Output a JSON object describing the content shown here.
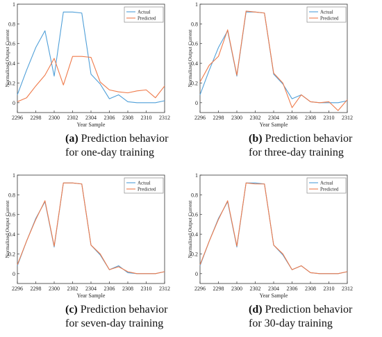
{
  "colors": {
    "actual": "#4f9fd8",
    "predicted": "#ef7a4a",
    "axis": "#333333",
    "legend_border": "#777777"
  },
  "chart_data": [
    {
      "type": "line",
      "xlabel": "Year Sample",
      "ylabel": "Normalized Output Current",
      "xlim": [
        2296,
        2312
      ],
      "ylim": [
        -0.1,
        1.0
      ],
      "xticks": [
        "2296",
        "2298",
        "2300",
        "2302",
        "2304",
        "2306",
        "2308",
        "2310",
        "2312"
      ],
      "yticks": [
        "0",
        "0.2",
        "0.4",
        "0.6",
        "0.8",
        "1"
      ],
      "legend": "top-right",
      "x": [
        2296,
        2297,
        2298,
        2299,
        2300,
        2301,
        2302,
        2303,
        2304,
        2305,
        2306,
        2307,
        2308,
        2309,
        2310,
        2311,
        2312
      ],
      "series": [
        {
          "name": "Actual",
          "color": "#4f9fd8",
          "values": [
            0.08,
            0.33,
            0.56,
            0.73,
            0.27,
            0.92,
            0.92,
            0.91,
            0.29,
            0.19,
            0.04,
            0.08,
            0.01,
            0.0,
            0.0,
            0.0,
            0.02
          ]
        },
        {
          "name": "Predicted",
          "color": "#ef7a4a",
          "values": [
            0.01,
            0.05,
            0.17,
            0.28,
            0.45,
            0.18,
            0.47,
            0.47,
            0.46,
            0.21,
            0.13,
            0.11,
            0.1,
            0.12,
            0.13,
            0.05,
            0.17
          ]
        }
      ],
      "caption": {
        "label": "(a)",
        "line1": "Prediction behavior",
        "line2": "for one-day training"
      }
    },
    {
      "type": "line",
      "xlabel": "Year Sample",
      "ylabel": "Normalized Output Current",
      "xlim": [
        2296,
        2312
      ],
      "ylim": [
        -0.1,
        1.0
      ],
      "xticks": [
        "2296",
        "2298",
        "2300",
        "2302",
        "2304",
        "2306",
        "2308",
        "2310",
        "2312"
      ],
      "yticks": [
        "0",
        "0.2",
        "0.4",
        "0.6",
        "0.8",
        "1"
      ],
      "legend": "top-right",
      "x": [
        2296,
        2297,
        2298,
        2299,
        2300,
        2301,
        2302,
        2303,
        2304,
        2305,
        2306,
        2307,
        2308,
        2309,
        2310,
        2311,
        2312
      ],
      "series": [
        {
          "name": "Actual",
          "color": "#4f9fd8",
          "values": [
            0.08,
            0.33,
            0.56,
            0.73,
            0.27,
            0.92,
            0.92,
            0.91,
            0.29,
            0.19,
            0.04,
            0.08,
            0.01,
            0.0,
            0.0,
            0.0,
            0.02
          ]
        },
        {
          "name": "Predicted",
          "color": "#ef7a4a",
          "values": [
            0.21,
            0.38,
            0.47,
            0.74,
            0.28,
            0.93,
            0.92,
            0.91,
            0.3,
            0.2,
            -0.05,
            0.08,
            0.01,
            0.0,
            0.01,
            -0.08,
            0.03
          ]
        }
      ],
      "caption": {
        "label": "(b)",
        "line1": "Prediction behavior",
        "line2": "for three-day training"
      }
    },
    {
      "type": "line",
      "xlabel": "Year Sample",
      "ylabel": "Normalized Output Current",
      "xlim": [
        2296,
        2312
      ],
      "ylim": [
        -0.1,
        1.0
      ],
      "xticks": [
        "2296",
        "2298",
        "2300",
        "2302",
        "2304",
        "2306",
        "2308",
        "2310",
        "2312"
      ],
      "yticks": [
        "0",
        "0.2",
        "0.4",
        "0.6",
        "0.8",
        "1"
      ],
      "legend": "top-right",
      "x": [
        2296,
        2297,
        2298,
        2299,
        2300,
        2301,
        2302,
        2303,
        2304,
        2305,
        2306,
        2307,
        2308,
        2309,
        2310,
        2311,
        2312
      ],
      "series": [
        {
          "name": "Actual",
          "color": "#4f9fd8",
          "values": [
            0.08,
            0.33,
            0.56,
            0.73,
            0.27,
            0.92,
            0.92,
            0.91,
            0.29,
            0.19,
            0.04,
            0.08,
            0.01,
            0.0,
            0.0,
            0.0,
            0.02
          ]
        },
        {
          "name": "Predicted",
          "color": "#ef7a4a",
          "values": [
            0.09,
            0.33,
            0.55,
            0.74,
            0.28,
            0.92,
            0.92,
            0.91,
            0.29,
            0.2,
            0.04,
            0.07,
            0.02,
            0.0,
            0.0,
            0.0,
            0.02
          ]
        }
      ],
      "caption": {
        "label": "(c)",
        "line1": "Prediction behavior",
        "line2": "for seven-day training"
      }
    },
    {
      "type": "line",
      "xlabel": "Year Sample",
      "ylabel": "Normalized Output Current",
      "xlim": [
        2296,
        2312
      ],
      "ylim": [
        -0.1,
        1.0
      ],
      "xticks": [
        "2296",
        "2298",
        "2300",
        "2302",
        "2304",
        "2306",
        "2308",
        "2310",
        "2312"
      ],
      "yticks": [
        "0",
        "0.2",
        "0.4",
        "0.6",
        "0.8",
        "1"
      ],
      "legend": "top-right",
      "x": [
        2296,
        2297,
        2298,
        2299,
        2300,
        2301,
        2302,
        2303,
        2304,
        2305,
        2306,
        2307,
        2308,
        2309,
        2310,
        2311,
        2312
      ],
      "series": [
        {
          "name": "Actual",
          "color": "#4f9fd8",
          "values": [
            0.08,
            0.33,
            0.56,
            0.73,
            0.27,
            0.92,
            0.92,
            0.91,
            0.29,
            0.19,
            0.04,
            0.08,
            0.01,
            0.0,
            0.0,
            0.0,
            0.02
          ]
        },
        {
          "name": "Predicted",
          "color": "#ef7a4a",
          "values": [
            0.09,
            0.33,
            0.55,
            0.74,
            0.28,
            0.92,
            0.91,
            0.91,
            0.29,
            0.2,
            0.04,
            0.08,
            0.01,
            0.0,
            0.0,
            0.0,
            0.02
          ]
        }
      ],
      "caption": {
        "label": "(d)",
        "line1": "Prediction behavior",
        "line2": "for 30-day training"
      }
    }
  ]
}
